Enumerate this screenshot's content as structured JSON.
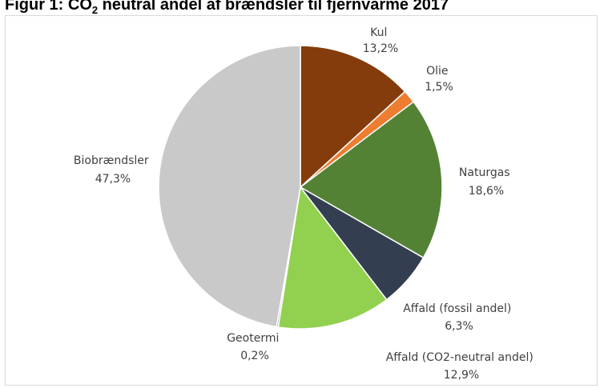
{
  "title_prefix": "Figur 1: CO",
  "title_sub": "2",
  "title_suffix": " neutral andel af brændsler til fjernvarme 2017",
  "chart_data": {
    "type": "pie",
    "slices": [
      {
        "name": "Kul",
        "value_label": "13,2%",
        "value": 13.2,
        "color": "#843c0c"
      },
      {
        "name": "Olie",
        "value_label": "1,5%",
        "value": 1.5,
        "color": "#ed7d31"
      },
      {
        "name": "Naturgas",
        "value_label": "18,6%",
        "value": 18.6,
        "color": "#548235"
      },
      {
        "name": "Affald (fossil andel)",
        "value_label": "6,3%",
        "value": 6.3,
        "color": "#333f50"
      },
      {
        "name": "Affald (CO2-neutral andel)",
        "value_label": "12,9%",
        "value": 12.9,
        "color": "#92d050"
      },
      {
        "name": "Geotermi",
        "value_label": "0,2%",
        "value": 0.2,
        "color": "#a5a5a5"
      },
      {
        "name": "Biobrændsler",
        "value_label": "47,3%",
        "value": 47.3,
        "color": "#c9c9c9"
      }
    ]
  }
}
